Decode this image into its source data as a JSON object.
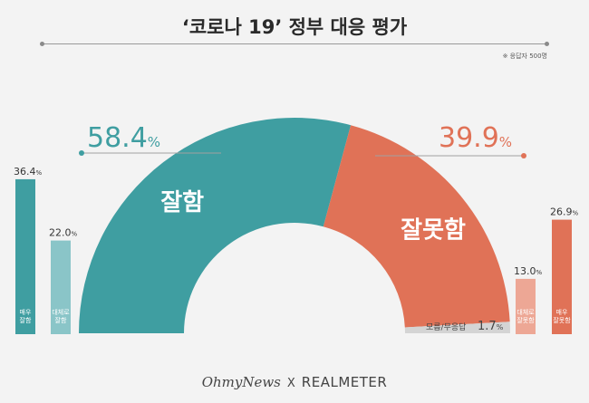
{
  "title": "‘코로나 19’ 정부 대응 평가",
  "sample_note": "※ 응답자 500명",
  "footer": {
    "brand1": "OhmyNews",
    "separator": "X",
    "brand2": "REALMETER"
  },
  "colors": {
    "positive": "#3f9ea1",
    "positive_light": "#8ac5c8",
    "negative": "#e07257",
    "negative_light": "#eda795",
    "neutral": "#d4d4d4",
    "rule": "#a0a0a0"
  },
  "chart_data": {
    "type": "semi-donut",
    "segments": [
      {
        "label": "잘함",
        "value": 58.4,
        "value_text": "58.4",
        "unit": "%",
        "color_key": "positive"
      },
      {
        "label": "잘못함",
        "value": 39.9,
        "value_text": "39.9",
        "unit": "%",
        "color_key": "negative"
      },
      {
        "label": "모름/무응답",
        "value": 1.7,
        "value_text": "1.7",
        "unit": "%",
        "color_key": "neutral"
      }
    ],
    "bars": [
      {
        "label": "매우\n잘함",
        "value": 36.4,
        "value_text": "36.4",
        "unit": "%",
        "color_key": "positive"
      },
      {
        "label": "대체로\n잘함",
        "value": 22.0,
        "value_text": "22.0",
        "unit": "%",
        "color_key": "positive_light"
      },
      {
        "label": "대체로\n잘못함",
        "value": 13.0,
        "value_text": "13.0",
        "unit": "%",
        "color_key": "negative_light"
      },
      {
        "label": "매우\n잘못함",
        "value": 26.9,
        "value_text": "26.9",
        "unit": "%",
        "color_key": "negative"
      }
    ]
  }
}
